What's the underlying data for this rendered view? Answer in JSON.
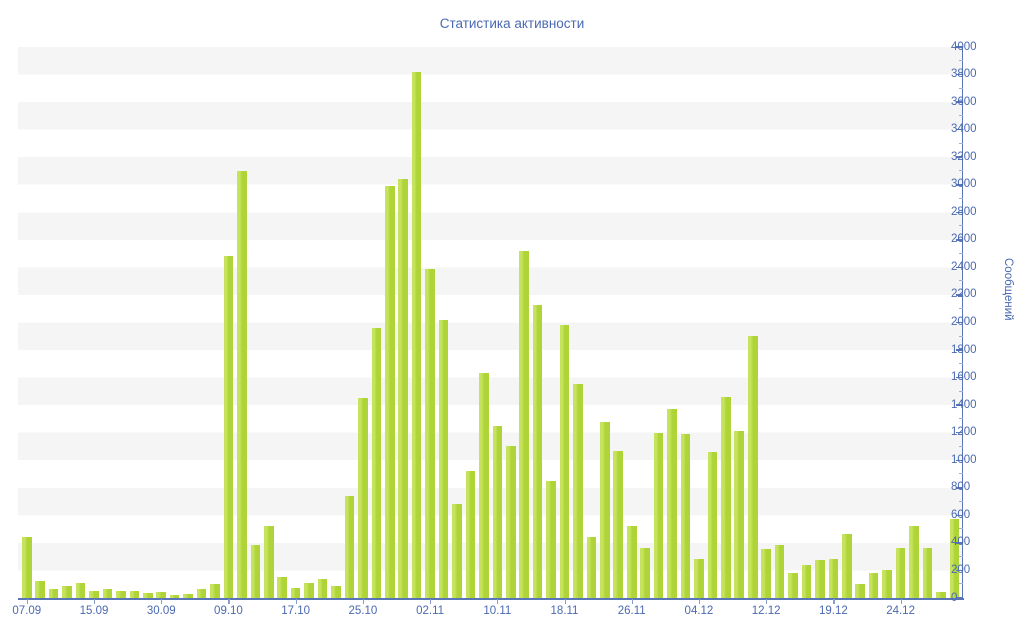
{
  "title": "Статистика активности",
  "colors": {
    "bar": "#aed438",
    "bar_highlight": "#c6e35d",
    "axis": "#5b76b8",
    "text": "#4a69b2",
    "stripe": "#f5f5f5",
    "background": "#ffffff"
  },
  "chart_data": {
    "type": "bar",
    "title": "Статистика активности",
    "xlabel": "",
    "ylabel": "Сообщений",
    "ylim": [
      0,
      4000
    ],
    "y_tick_step": 200,
    "y_minor_tick_step": 100,
    "grid": "horizontal-stripes",
    "legend": "none",
    "x_tick_labels": [
      "07.09",
      "15.09",
      "30.09",
      "09.10",
      "17.10",
      "25.10",
      "02.11",
      "10.11",
      "18.11",
      "26.11",
      "04.12",
      "12.12",
      "19.12",
      "24.12"
    ],
    "x_tick_every_n_bars": 5,
    "values": [
      440,
      120,
      65,
      90,
      110,
      50,
      65,
      50,
      50,
      35,
      40,
      20,
      30,
      65,
      105,
      2480,
      3100,
      385,
      520,
      150,
      70,
      110,
      140,
      90,
      740,
      1450,
      1960,
      2990,
      3040,
      3820,
      2390,
      2020,
      680,
      920,
      1630,
      1250,
      1100,
      2520,
      2130,
      850,
      1980,
      1550,
      440,
      1280,
      1070,
      520,
      360,
      1200,
      1370,
      1190,
      280,
      1060,
      1460,
      1210,
      1900,
      355,
      385,
      185,
      240,
      275,
      280,
      465,
      100,
      180,
      200,
      365,
      525,
      365,
      40,
      575
    ]
  }
}
